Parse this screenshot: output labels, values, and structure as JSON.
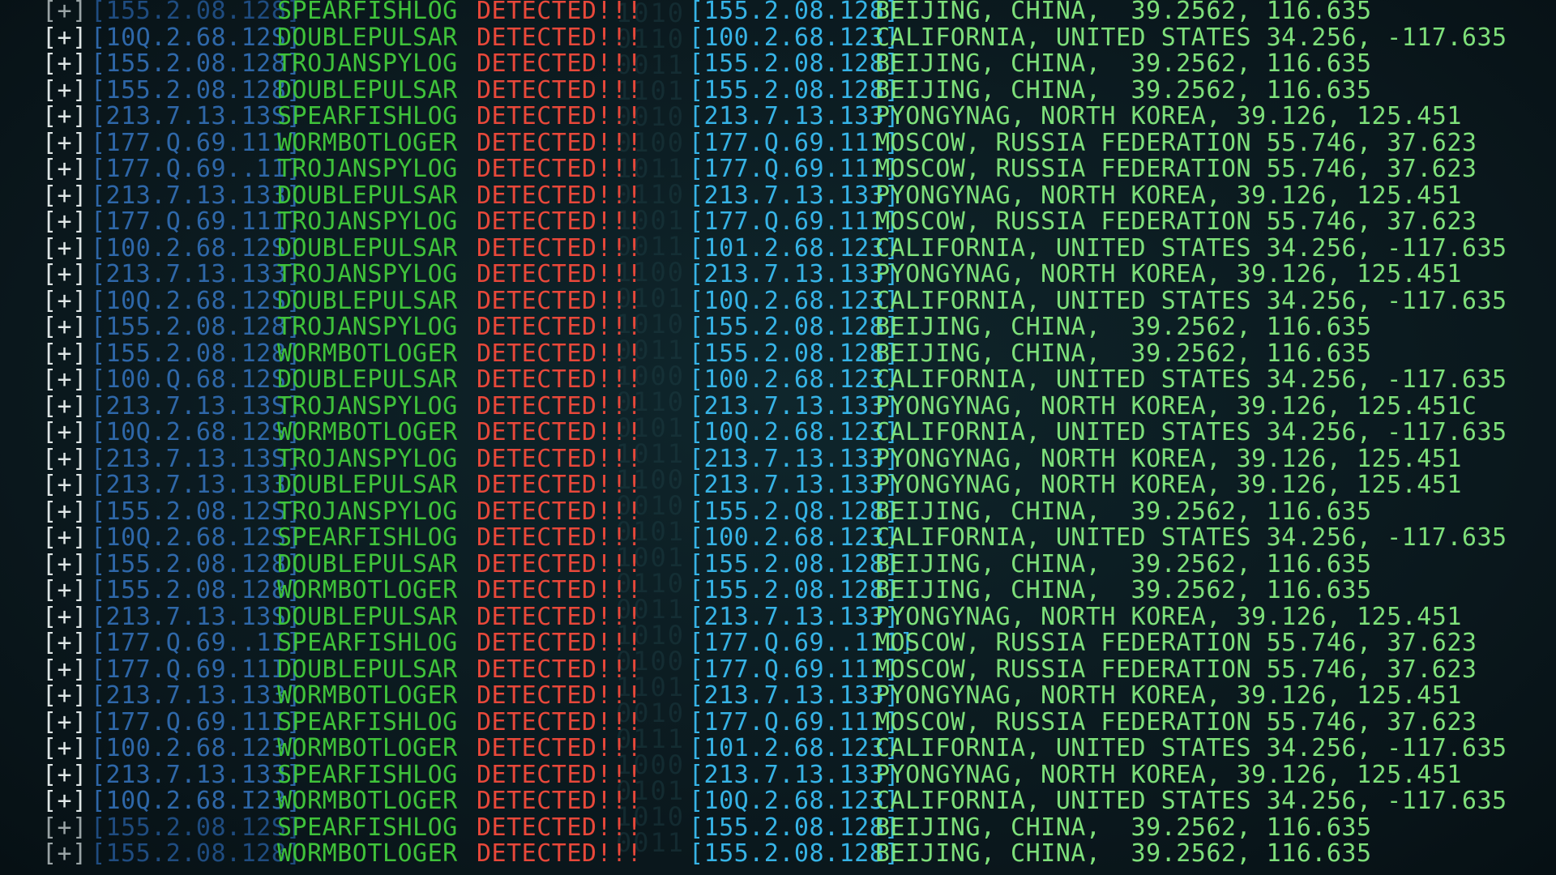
{
  "colors": {
    "background": "#0b1a1f",
    "tag": "#dfe6e6",
    "source_ip": "#2e67a8",
    "malware_name": "#3fc23a",
    "detected": "#e8483a",
    "target_ip": "#36b3e6",
    "location": "#7ee07a"
  },
  "binary_background": "1010\n0110\n0011\n1101\n0010\n0100\n1011\n0110\n1001\n0011\n1100\n0101\n1010\n0011\n1000\n0110\n0101\n1011\n1100\n0010\n0101\n1001\n0110\n0011\n1010\n0100\n1101\n0010\n0111\n1000\n0101\n1010\n0011",
  "rows": [
    {
      "tag": "[+]",
      "source_ip": "[155.2.08.128]",
      "malware": "SPEARFISHLOG",
      "status": "DETECTED!!!",
      "target_ip": "[155.2.08.128]",
      "location": "BEIJING, CHINA,  39.2562, 116.635"
    },
    {
      "tag": "[+]",
      "source_ip": "[10Q.2.68.12S]",
      "malware": "DOUBLEPULSAR",
      "status": "DETECTED!!!",
      "target_ip": "[100.2.68.123]",
      "location": "CALIFORNIA, UNITED STATES 34.256, -117.635"
    },
    {
      "tag": "[+]",
      "source_ip": "[155.2.08.128]",
      "malware": "TROJANSPYLOG",
      "status": "DETECTED!!!",
      "target_ip": "[155.2.08.128]",
      "location": "BEIJING, CHINA,  39.2562, 116.635"
    },
    {
      "tag": "[+]",
      "source_ip": "[155.2.08.128]",
      "malware": "DOUBLEPULSAR",
      "status": "DETECTED!!!",
      "target_ip": "[155.2.08.128]",
      "location": "BEIJING, CHINA,  39.2562, 116.635"
    },
    {
      "tag": "[+]",
      "source_ip": "[213.7.13.13S]",
      "malware": "SPEARFISHLOG",
      "status": "DETECTED!!!",
      "target_ip": "[213.7.13.133]",
      "location": "PYONGYNAG, NORTH KOREA, 39.126, 125.451"
    },
    {
      "tag": "[+]",
      "source_ip": "[177.Q.69.111]",
      "malware": "WORMBOTLOGER",
      "status": "DETECTED!!!",
      "target_ip": "[177.Q.69.111]",
      "location": "MOSCOW, RUSSIA FEDERATION 55.746, 37.623"
    },
    {
      "tag": "[+]",
      "source_ip": "[177.Q.69..11]",
      "malware": "TROJANSPYLOG",
      "status": "DETECTED!!!",
      "target_ip": "[177.Q.69.111]",
      "location": "MOSCOW, RUSSIA FEDERATION 55.746, 37.623"
    },
    {
      "tag": "[+]",
      "source_ip": "[213.7.13.133]",
      "malware": "DOUBLEPULSAR",
      "status": "DETECTED!!!",
      "target_ip": "[213.7.13.133]",
      "location": "PYONGYNAG, NORTH KOREA, 39.126, 125.451"
    },
    {
      "tag": "[+]",
      "source_ip": "[177.Q.69.111]",
      "malware": "TROJANSPYLOG",
      "status": "DETECTED!!!",
      "target_ip": "[177.Q.69.111]",
      "location": "MOSCOW, RUSSIA FEDERATION 55.746, 37.623"
    },
    {
      "tag": "[+]",
      "source_ip": "[100.2.68.12S]",
      "malware": "DOUBLEPULSAR",
      "status": "DETECTED!!!",
      "target_ip": "[101.2.68.123]",
      "location": "CALIFORNIA, UNITED STATES 34.256, -117.635"
    },
    {
      "tag": "[+]",
      "source_ip": "[213.7.13.133]",
      "malware": "TROJANSPYLOG",
      "status": "DETECTED!!!",
      "target_ip": "[213.7.13.133]",
      "location": "PYONGYNAG, NORTH KOREA, 39.126, 125.451"
    },
    {
      "tag": "[+]",
      "source_ip": "[10Q.2.68.12S]",
      "malware": "DOUBLEPULSAR",
      "status": "DETECTED!!!",
      "target_ip": "[10Q.2.68.123]",
      "location": "CALIFORNIA, UNITED STATES 34.256, -117.635"
    },
    {
      "tag": "[+]",
      "source_ip": "[155.2.08.128]",
      "malware": "TROJANSPYLOG",
      "status": "DETECTED!!!",
      "target_ip": "[155.2.08.128]",
      "location": "BEIJING, CHINA,  39.2562, 116.635"
    },
    {
      "tag": "[+]",
      "source_ip": "[155.2.08.128]",
      "malware": "WORMBOTLOGER",
      "status": "DETECTED!!!",
      "target_ip": "[155.2.08.128]",
      "location": "BEIJING, CHINA,  39.2562, 116.635"
    },
    {
      "tag": "[+]",
      "source_ip": "[100.Q.68.12S]",
      "malware": "DOUBLEPULSAR",
      "status": "DETECTED!!!",
      "target_ip": "[100.2.68.123]",
      "location": "CALIFORNIA, UNITED STATES 34.256, -117.635"
    },
    {
      "tag": "[+]",
      "source_ip": "[213.7.13.13S]",
      "malware": "TROJANSPYLOG",
      "status": "DETECTED!!!",
      "target_ip": "[213.7.13.133]",
      "location": "PYONGYNAG, NORTH KOREA, 39.126, 125.451C"
    },
    {
      "tag": "[+]",
      "source_ip": "[10Q.2.68.12S]",
      "malware": "WORMBOTLOGER",
      "status": "DETECTED!!!",
      "target_ip": "[10Q.2.68.123]",
      "location": "CALIFORNIA, UNITED STATES 34.256, -117.635"
    },
    {
      "tag": "[+]",
      "source_ip": "[213.7.13.13S]",
      "malware": "TROJANSPYLOG",
      "status": "DETECTED!!!",
      "target_ip": "[213.7.13.133]",
      "location": "PYONGYNAG, NORTH KOREA, 39.126, 125.451"
    },
    {
      "tag": "[+]",
      "source_ip": "[213.7.13.133]",
      "malware": "DOUBLEPULSAR",
      "status": "DETECTED!!!",
      "target_ip": "[213.7.13.133]",
      "location": "PYONGYNAG, NORTH KOREA, 39.126, 125.451"
    },
    {
      "tag": "[+]",
      "source_ip": "[155.2.08.12S]",
      "malware": "TROJANSPYLOG",
      "status": "DETECTED!!!",
      "target_ip": "[155.2.Q8.128]",
      "location": "BEIJING, CHINA,  39.2562, 116.635"
    },
    {
      "tag": "[+]",
      "source_ip": "[10Q.2.68.12S]",
      "malware": "SPEARFISHLOG",
      "status": "DETECTED!!!",
      "target_ip": "[100.2.68.123]",
      "location": "CALIFORNIA, UNITED STATES 34.256, -117.635"
    },
    {
      "tag": "[+]",
      "source_ip": "[155.2.08.128]",
      "malware": "DOUBLEPULSAR",
      "status": "DETECTED!!!",
      "target_ip": "[155.2.08.128]",
      "location": "BEIJING, CHINA,  39.2562, 116.635"
    },
    {
      "tag": "[+]",
      "source_ip": "[155.2.08.128]",
      "malware": "WORMBOTLOGER",
      "status": "DETECTED!!!",
      "target_ip": "[155.2.08.128]",
      "location": "BEIJING, CHINA,  39.2562, 116.635"
    },
    {
      "tag": "[+]",
      "source_ip": "[213.7.13.13S]",
      "malware": "DOUBLEPULSAR",
      "status": "DETECTED!!!",
      "target_ip": "[213.7.13.133]",
      "location": "PYONGYNAG, NORTH KOREA, 39.126, 125.451"
    },
    {
      "tag": "[+]",
      "source_ip": "[177.Q.69..1I]",
      "malware": "SPEARFISHLOG",
      "status": "DETECTED!!!",
      "target_ip": "[177.Q.69..111]",
      "location": "MOSCOW, RUSSIA FEDERATION 55.746, 37.623"
    },
    {
      "tag": "[+]",
      "source_ip": "[177.Q.69.11I]",
      "malware": "DOUBLEPULSAR",
      "status": "DETECTED!!!",
      "target_ip": "[177.Q.69.111]",
      "location": "MOSCOW, RUSSIA FEDERATION 55.746, 37.623"
    },
    {
      "tag": "[+]",
      "source_ip": "[213.7.13.133]",
      "malware": "WORMBOTLOGER",
      "status": "DETECTED!!!",
      "target_ip": "[213.7.13.133]",
      "location": "PYONGYNAG, NORTH KOREA, 39.126, 125.451"
    },
    {
      "tag": "[+]",
      "source_ip": "[177.Q.69.11I]",
      "malware": "SPEARFISHLOG",
      "status": "DETECTED!!!",
      "target_ip": "[177.Q.69.111]",
      "location": "MOSCOW, RUSSIA FEDERATION 55.746, 37.623"
    },
    {
      "tag": "[+]",
      "source_ip": "[100.2.68.123]",
      "malware": "WORMBOTLOGER",
      "status": "DETECTED!!!",
      "target_ip": "[101.2.68.123]",
      "location": "CALIFORNIA, UNITED STATES 34.256, -117.635"
    },
    {
      "tag": "[+]",
      "source_ip": "[213.7.13.133]",
      "malware": "SPEARFISHLOG",
      "status": "DETECTED!!!",
      "target_ip": "[213.7.13.133]",
      "location": "PYONGYNAG, NORTH KOREA, 39.126, 125.451"
    },
    {
      "tag": "[+]",
      "source_ip": "[10Q.2.68.I23]",
      "malware": "WORMBOTLOGER",
      "status": "DETECTED!!!",
      "target_ip": "[10Q.2.68.123]",
      "location": "CALIFORNIA, UNITED STATES 34.256, -117.635"
    },
    {
      "tag": "[+]",
      "source_ip": "[155.2.08.12S]",
      "malware": "SPEARFISHLOG",
      "status": "DETECTED!!!",
      "target_ip": "[155.2.08.128]",
      "location": "BEIJING, CHINA,  39.2562, 116.635"
    },
    {
      "tag": "[+]",
      "source_ip": "[155.2.08.128]",
      "malware": "WORMBOTLOGER",
      "status": "DETECTED!!!",
      "target_ip": "[155.2.08.128]",
      "location": "BEIJING, CHINA,  39.2562, 116.635"
    }
  ]
}
